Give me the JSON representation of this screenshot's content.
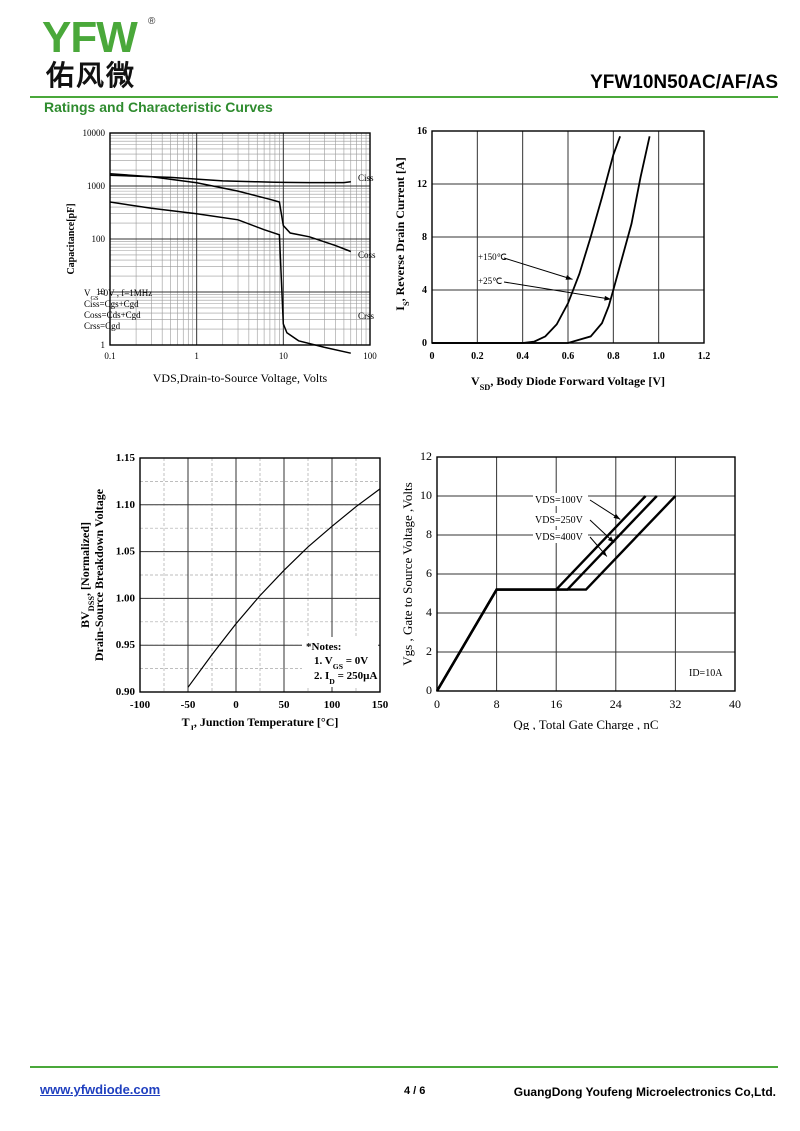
{
  "header": {
    "logo_text": "YFW",
    "logo_cn": "佑风微",
    "registered": "®",
    "part_number": "YFW10N50AC/AF/AS",
    "section_title": "Ratings and Characteristic Curves",
    "brand_green": "#4aa83a"
  },
  "footer": {
    "url": "www.yfwdiode.com",
    "page": "4 / 6",
    "company": "GuangDong Youfeng Microelectronics Co,Ltd."
  },
  "chart_data": [
    {
      "type": "line",
      "xlog": true,
      "ylog": true,
      "xlim": [
        0.1,
        100
      ],
      "ylim": [
        1,
        10000
      ],
      "xticks": [
        "0.1",
        "1",
        "10",
        "100"
      ],
      "yticks": [
        "1",
        "10",
        "100",
        "1000",
        "10000"
      ],
      "xlabel": "VDS,Drain-to-Source Voltage, Volts",
      "ylabel": "Capacitance[pF]",
      "notes": [
        "V_GS=0V , f=1MHz",
        "Ciss=Cgs+Cgd",
        "Coss=Cds+Cgd",
        "Crss=Cgd"
      ],
      "series": [
        {
          "name": "Ciss",
          "x": [
            0.1,
            0.5,
            1,
            2,
            5,
            8,
            10,
            20,
            50,
            60
          ],
          "y": [
            1600,
            1450,
            1350,
            1250,
            1200,
            1180,
            1170,
            1160,
            1160,
            1200
          ]
        },
        {
          "name": "Coss",
          "x": [
            0.1,
            0.3,
            1,
            3,
            7,
            9,
            10,
            12,
            20,
            40,
            60
          ],
          "y": [
            1700,
            1500,
            1150,
            800,
            560,
            500,
            180,
            130,
            110,
            75,
            58
          ]
        },
        {
          "name": "Crss",
          "x": [
            0.1,
            0.3,
            1,
            3,
            6,
            9,
            10,
            11,
            15,
            30,
            60
          ],
          "y": [
            500,
            380,
            300,
            230,
            150,
            120,
            2.5,
            1.7,
            1.2,
            0.9,
            0.7
          ]
        }
      ]
    },
    {
      "type": "line",
      "xlim": [
        0,
        1.2
      ],
      "ylim": [
        0,
        16
      ],
      "xticks": [
        "0",
        "0.2",
        "0.4",
        "0.6",
        "0.8",
        "1.0",
        "1.2"
      ],
      "yticks": [
        "0",
        "4",
        "8",
        "12",
        "16"
      ],
      "xlabel": "V_SD, Body Diode Forward Voltage [V]",
      "ylabel": "I_S, Reverse Drain Current [A]",
      "series": [
        {
          "name": "+150℃",
          "x": [
            0.0,
            0.4,
            0.45,
            0.5,
            0.55,
            0.6,
            0.65,
            0.7,
            0.75,
            0.8,
            0.83
          ],
          "y": [
            0,
            0,
            0.1,
            0.5,
            1.4,
            3.0,
            5.2,
            8.0,
            11.0,
            14.2,
            15.6
          ]
        },
        {
          "name": "+25℃",
          "x": [
            0.0,
            0.6,
            0.7,
            0.75,
            0.78,
            0.8,
            0.84,
            0.88,
            0.92,
            0.96
          ],
          "y": [
            0,
            0,
            0.5,
            1.5,
            2.8,
            4.0,
            6.5,
            9.0,
            12.5,
            15.6
          ]
        }
      ]
    },
    {
      "type": "line",
      "xlim": [
        -100,
        150
      ],
      "ylim": [
        0.9,
        1.15
      ],
      "xticks": [
        "-100",
        "-50",
        "0",
        "50",
        "100",
        "150"
      ],
      "yticks": [
        "0.90",
        "0.95",
        "1.00",
        "1.05",
        "1.10",
        "1.15"
      ],
      "xlabel": "T_J, Junction Temperature [°C]",
      "ylabel": "BV_DSS, [Normalized] Drain-Source Breakdown Voltage",
      "notes_title": "*Notes:",
      "notes": [
        "1. V_GS = 0V",
        "2. I_D = 250µA"
      ],
      "series": [
        {
          "name": "",
          "x": [
            -50,
            -25,
            0,
            25,
            50,
            75,
            100,
            125,
            150
          ],
          "y": [
            0.905,
            0.94,
            0.973,
            1.003,
            1.03,
            1.055,
            1.077,
            1.098,
            1.117
          ]
        }
      ]
    },
    {
      "type": "line",
      "xlim": [
        0,
        40
      ],
      "ylim": [
        0,
        12
      ],
      "xticks": [
        "0",
        "8",
        "16",
        "24",
        "32",
        "40"
      ],
      "yticks": [
        "0",
        "2",
        "4",
        "6",
        "8",
        "10",
        "12"
      ],
      "xlabel": "Qg , Total Gate Charge , nC",
      "ylabel": "Vgs , Gate to Source Voltage ,Volts",
      "annotation": "ID=10A",
      "series": [
        {
          "name": "VDS=100V",
          "x": [
            0,
            8,
            16,
            28
          ],
          "y": [
            0,
            5.2,
            5.2,
            10
          ]
        },
        {
          "name": "VDS=250V",
          "x": [
            0,
            8,
            17.5,
            29.5
          ],
          "y": [
            0,
            5.2,
            5.2,
            10
          ]
        },
        {
          "name": "VDS=400V",
          "x": [
            0,
            8,
            20,
            32
          ],
          "y": [
            0,
            5.2,
            5.2,
            10
          ]
        }
      ]
    }
  ]
}
